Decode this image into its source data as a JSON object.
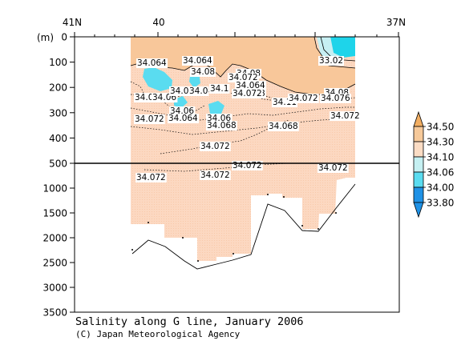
{
  "chart_data": {
    "type": "contour section",
    "title": "Salinity along G line, January 2006",
    "credit": "(C) Japan Meteorological Agency",
    "x_axis": {
      "ticks": [
        "41N",
        "40",
        "37N"
      ]
    },
    "y_axis": {
      "unit_label": "(m)",
      "upper_ticks": [
        0,
        100,
        200,
        300,
        400,
        500
      ],
      "lower_ticks": [
        1000,
        1500,
        2000,
        2500,
        3000,
        3500
      ]
    },
    "colorbar": {
      "levels": [
        "34.50",
        "34.30",
        "34.10",
        "34.06",
        "34.00",
        "33.80"
      ],
      "colors": [
        "#f2ae62",
        "#f6c99a",
        "#fbdcc4",
        "#c5f0f2",
        "#5adcf0",
        "#1f92e6"
      ]
    },
    "contour_labels": [
      {
        "text": "34.064"
      },
      {
        "text": "34.064"
      },
      {
        "text": "34.08"
      },
      {
        "text": "34.08"
      },
      {
        "text": "34.072"
      },
      {
        "text": "34.064"
      },
      {
        "text": "34.068"
      },
      {
        "text": "34.1"
      },
      {
        "text": "34.03"
      },
      {
        "text": "34.06"
      },
      {
        "text": "34.03"
      },
      {
        "text": "34.0"
      },
      {
        "text": "34.06"
      },
      {
        "text": "34.064"
      },
      {
        "text": "34.072"
      },
      {
        "text": "34.06"
      },
      {
        "text": "34.068"
      },
      {
        "text": "34.072"
      },
      {
        "text": "34.068"
      },
      {
        "text": "34.11"
      },
      {
        "text": "34.072"
      },
      {
        "text": "34.08"
      },
      {
        "text": "34.076"
      },
      {
        "text": "34.072"
      },
      {
        "text": "34.072"
      },
      {
        "text": "34.072"
      },
      {
        "text": "34.072"
      },
      {
        "text": "34.072"
      },
      {
        "text": "34.072"
      },
      {
        "text": "33.02"
      }
    ],
    "bottom_depth_profile_m": [
      2200,
      1950,
      2100,
      2450,
      2650,
      2550,
      2400,
      1350,
      1500,
      1850,
      1900,
      1400,
      850
    ]
  }
}
